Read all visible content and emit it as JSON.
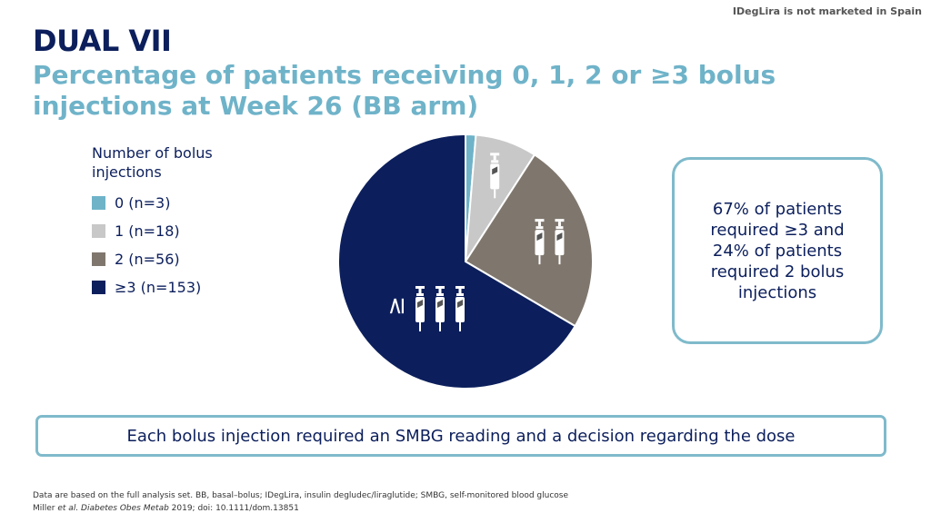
{
  "header": {
    "disclaimer": "IDegLira is not marketed in Spain",
    "title": "DUAL VII",
    "subtitle": "Percentage of patients receiving 0, 1, 2 or ≥3 bolus injections at Week 26 (BB arm)"
  },
  "legend": {
    "title": "Number of bolus injections",
    "items": [
      {
        "label": "0 (n=3)",
        "color": "#6fb3c9"
      },
      {
        "label": "1 (n=18)",
        "color": "#c8c8c8"
      },
      {
        "label": "2 (n=56)",
        "color": "#7f776e"
      },
      {
        "label": "≥3 (n=153)",
        "color": "#0c1f5c"
      }
    ]
  },
  "chart_data": {
    "type": "pie",
    "categories": [
      "0",
      "1",
      "2",
      "≥3"
    ],
    "values": [
      3,
      18,
      56,
      153
    ],
    "colors": [
      "#6fb3c9",
      "#c8c8c8",
      "#7f776e",
      "#0c1f5c"
    ],
    "slice_icons": [
      "",
      "syringe-icon x1",
      "syringe-icon x2",
      "syringe-icon x3"
    ],
    "slice_prefix": [
      "",
      "",
      "",
      "≥"
    ]
  },
  "callout": {
    "text": "67% of patients required ≥3 and 24% of patients required 2 bolus injections"
  },
  "banner": {
    "text": "Each bolus injection required an SMBG reading and a decision regarding the dose"
  },
  "footnotes": {
    "line1": "Data are based on the full analysis set. BB, basal–bolus; IDegLira, insulin degludec/liraglutide; SMBG, self-monitored blood glucose",
    "line2_prefix": "Miller ",
    "line2_italic": "et al. Diabetes Obes Metab",
    "line2_suffix": " 2019; doi: 10.1111/dom.13851"
  }
}
